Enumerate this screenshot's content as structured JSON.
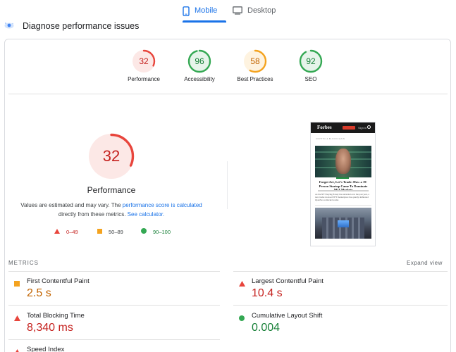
{
  "tabs": [
    {
      "label": "Mobile",
      "icon": "phone-icon",
      "active": true
    },
    {
      "label": "Desktop",
      "icon": "monitor-icon",
      "active": false
    }
  ],
  "header": {
    "title": "Diagnose performance issues",
    "icon": "diagnose-icon"
  },
  "scores": [
    {
      "label": "Performance",
      "value": "32",
      "fraction": 0.32,
      "color": "#e8453c"
    },
    {
      "label": "Accessibility",
      "value": "96",
      "fraction": 0.96,
      "color": "#34a853"
    },
    {
      "label": "Best Practices",
      "value": "58",
      "fraction": 0.58,
      "color": "#f4a31f"
    },
    {
      "label": "SEO",
      "value": "92",
      "fraction": 0.92,
      "color": "#34a853"
    }
  ],
  "performance": {
    "score": "32",
    "fraction": 0.32,
    "title": "Performance",
    "note_prefix": "Values are estimated and may vary. The",
    "note_link1": "performance score is calculated",
    "note_middle": "directly from these metrics.",
    "note_link2": "See calculator."
  },
  "legend": [
    {
      "range": "0–49",
      "shape": "triangle",
      "color": "#e8453c"
    },
    {
      "range": "50–89",
      "shape": "square",
      "color": "#f4a31f"
    },
    {
      "range": "90–100",
      "shape": "circle",
      "color": "#34a853"
    }
  ],
  "screenshot": {
    "logo": "Forbes",
    "signin": "Sign in",
    "nav": "CRYPTO & BLOCKCHAIN",
    "headline": "Forget Art, Let’s Trade: How a 19-Person Startup Came To Dominate NFT Markets",
    "body": "As the NFT buying frenzy has subsided over the past year, a new trader-focused NFT marketplace has quietly dethroned OpenSea as market leader."
  },
  "metrics": {
    "heading": "METRICS",
    "expand_label": "Expand view",
    "items": [
      {
        "name": "First Contentful Paint",
        "value": "2.5 s",
        "status": "average"
      },
      {
        "name": "Largest Contentful Paint",
        "value": "10.4 s",
        "status": "fail"
      },
      {
        "name": "Total Blocking Time",
        "value": "8,340 ms",
        "status": "fail"
      },
      {
        "name": "Cumulative Layout Shift",
        "value": "0.004",
        "status": "pass"
      },
      {
        "name": "Speed Index",
        "value": "",
        "status": "fail"
      }
    ]
  },
  "colors": {
    "accent": "#1a73e8",
    "fail": "#c5221f",
    "average": "#f4a31f",
    "pass": "#188038"
  }
}
